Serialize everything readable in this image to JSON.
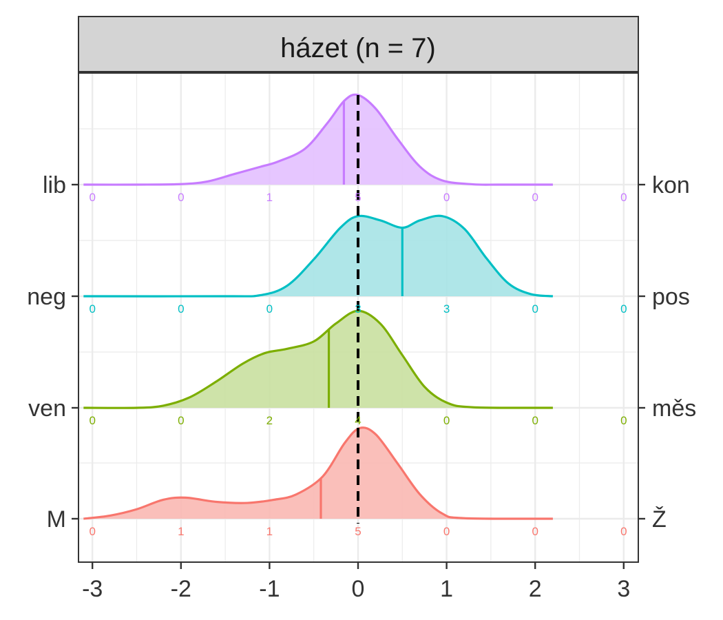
{
  "chart_data": {
    "type": "ridgeline-density",
    "title": "házet (n = 7)",
    "xlim": [
      -3,
      3
    ],
    "x_ticks": [
      "-3",
      "-2",
      "-1",
      "0",
      "1",
      "2",
      "3"
    ],
    "x_tick_values": [
      -3,
      -2,
      -1,
      0,
      1,
      2,
      3
    ],
    "count_positions": [
      -3,
      -2,
      -1,
      0,
      1,
      2,
      3
    ],
    "reference_line_x": 0,
    "rows": [
      {
        "left_label": "lib",
        "right_label": "kon",
        "color": "#C77CFF",
        "fill": "#E3C0FF",
        "mean": -0.16,
        "counts": [
          "0",
          "0",
          "1",
          "5",
          "0",
          "0",
          "0"
        ],
        "density": [
          [
            -3.1,
            0
          ],
          [
            -2.5,
            0
          ],
          [
            -2.0,
            0.005
          ],
          [
            -1.7,
            0.03
          ],
          [
            -1.4,
            0.1
          ],
          [
            -1.1,
            0.17
          ],
          [
            -0.9,
            0.22
          ],
          [
            -0.6,
            0.34
          ],
          [
            -0.35,
            0.58
          ],
          [
            -0.15,
            0.8
          ],
          [
            0.0,
            0.85
          ],
          [
            0.2,
            0.72
          ],
          [
            0.45,
            0.43
          ],
          [
            0.7,
            0.17
          ],
          [
            0.95,
            0.04
          ],
          [
            1.3,
            0.003
          ],
          [
            1.6,
            0
          ],
          [
            2.2,
            0
          ]
        ]
      },
      {
        "left_label": "neg",
        "right_label": "pos",
        "color": "#00BFC4",
        "fill": "#A6E3E5",
        "mean": 0.5,
        "counts": [
          "0",
          "0",
          "0",
          "3",
          "3",
          "0",
          "0"
        ],
        "density": [
          [
            -3.1,
            0
          ],
          [
            -1.5,
            0
          ],
          [
            -1.1,
            0.01
          ],
          [
            -0.8,
            0.1
          ],
          [
            -0.5,
            0.35
          ],
          [
            -0.2,
            0.65
          ],
          [
            0.0,
            0.76
          ],
          [
            0.25,
            0.72
          ],
          [
            0.5,
            0.65
          ],
          [
            0.7,
            0.72
          ],
          [
            0.95,
            0.76
          ],
          [
            1.2,
            0.64
          ],
          [
            1.45,
            0.36
          ],
          [
            1.7,
            0.12
          ],
          [
            1.95,
            0.02
          ],
          [
            2.2,
            0
          ]
        ]
      },
      {
        "left_label": "ven",
        "right_label": "měs",
        "color": "#7CAE00",
        "fill": "#C9E0A0",
        "mean": -0.33,
        "counts": [
          "0",
          "0",
          "2",
          "4",
          "0",
          "0",
          "0"
        ],
        "density": [
          [
            -3.1,
            0
          ],
          [
            -2.5,
            0
          ],
          [
            -2.2,
            0.02
          ],
          [
            -1.9,
            0.1
          ],
          [
            -1.6,
            0.25
          ],
          [
            -1.3,
            0.42
          ],
          [
            -1.05,
            0.52
          ],
          [
            -0.8,
            0.56
          ],
          [
            -0.5,
            0.63
          ],
          [
            -0.25,
            0.8
          ],
          [
            0.0,
            0.92
          ],
          [
            0.25,
            0.8
          ],
          [
            0.5,
            0.5
          ],
          [
            0.75,
            0.2
          ],
          [
            1.0,
            0.05
          ],
          [
            1.3,
            0.005
          ],
          [
            2.2,
            0
          ]
        ]
      },
      {
        "left_label": "M",
        "right_label": "Ž",
        "color": "#F8766D",
        "fill": "#F9B8B3",
        "mean": -0.42,
        "counts": [
          "0",
          "1",
          "1",
          "5",
          "0",
          "0",
          "0"
        ],
        "density": [
          [
            -3.1,
            0
          ],
          [
            -2.8,
            0.03
          ],
          [
            -2.5,
            0.09
          ],
          [
            -2.2,
            0.18
          ],
          [
            -1.95,
            0.2
          ],
          [
            -1.6,
            0.16
          ],
          [
            -1.25,
            0.15
          ],
          [
            -0.95,
            0.18
          ],
          [
            -0.7,
            0.23
          ],
          [
            -0.4,
            0.4
          ],
          [
            -0.15,
            0.72
          ],
          [
            0.02,
            0.86
          ],
          [
            0.2,
            0.8
          ],
          [
            0.45,
            0.52
          ],
          [
            0.7,
            0.23
          ],
          [
            0.95,
            0.05
          ],
          [
            1.2,
            0.005
          ],
          [
            2.2,
            0
          ]
        ]
      }
    ]
  }
}
